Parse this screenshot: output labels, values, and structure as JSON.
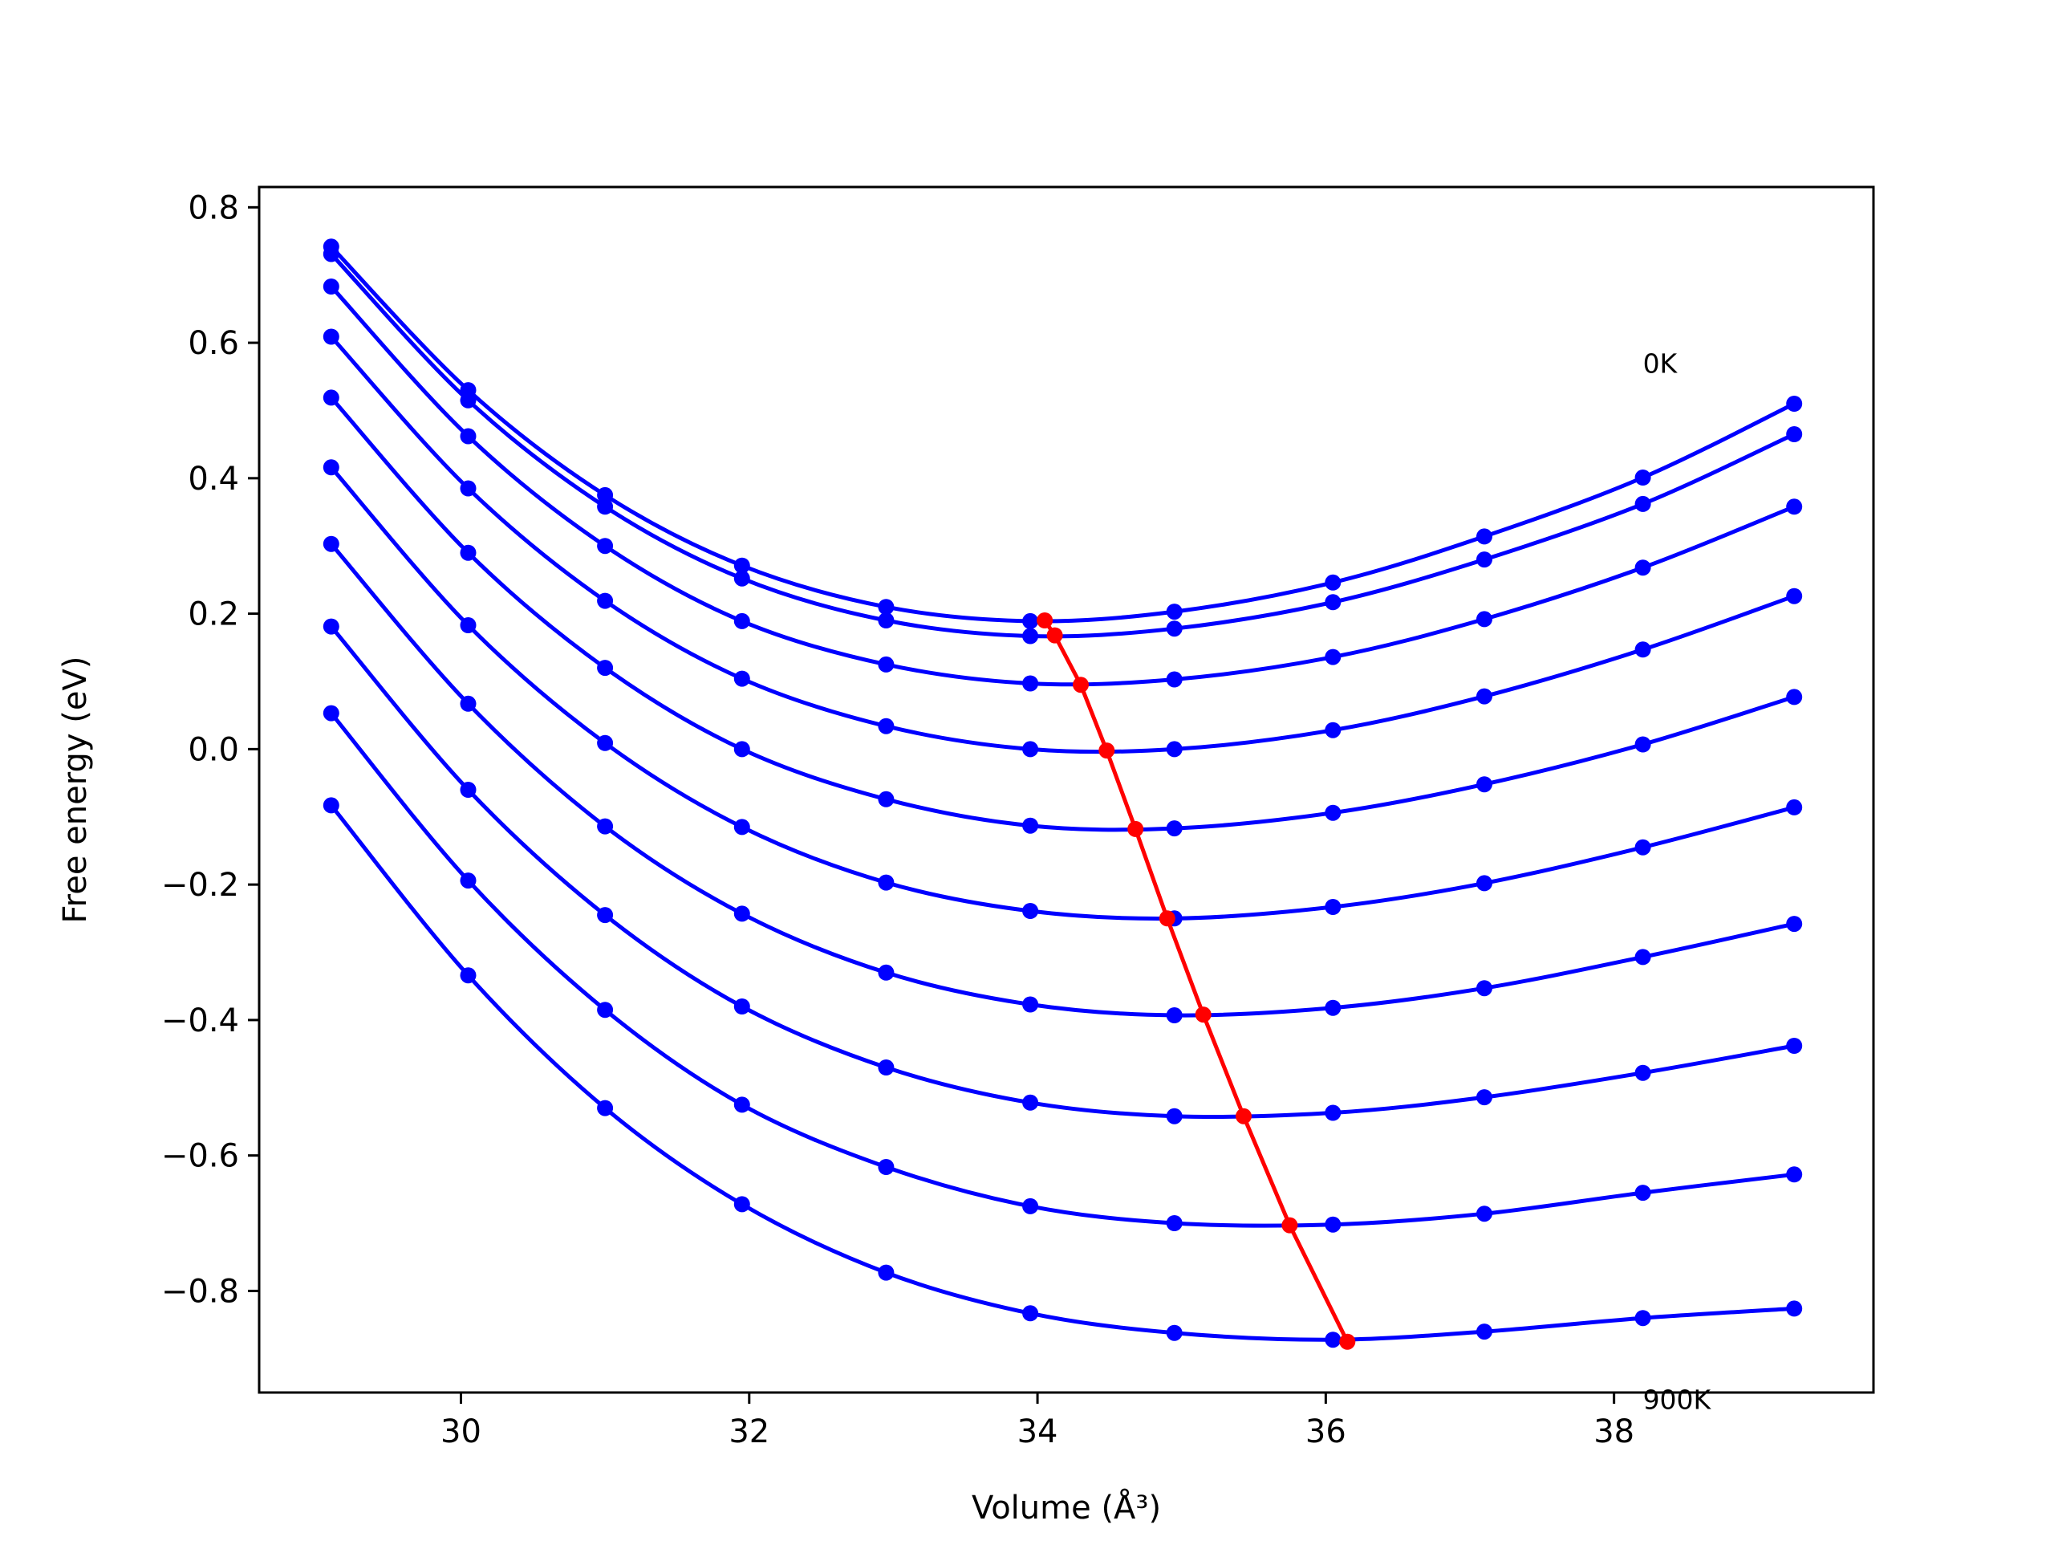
{
  "chart_data": {
    "type": "line",
    "title": "",
    "xlabel": "Volume (Å³)",
    "ylabel": "Free energy (eV)",
    "xlim": [
      28.6,
      39.8
    ],
    "ylim": [
      -0.95,
      0.83
    ],
    "xticks": [
      {
        "value": 30,
        "label": "30"
      },
      {
        "value": 32,
        "label": "32"
      },
      {
        "value": 34,
        "label": "34"
      },
      {
        "value": 36,
        "label": "36"
      },
      {
        "value": 38,
        "label": "38"
      }
    ],
    "yticks": [
      {
        "value": 0.8,
        "label": "0.8"
      },
      {
        "value": 0.6,
        "label": "0.6"
      },
      {
        "value": 0.4,
        "label": "0.4"
      },
      {
        "value": 0.2,
        "label": "0.2"
      },
      {
        "value": 0.0,
        "label": "0.0"
      },
      {
        "value": -0.2,
        "label": "−0.2"
      },
      {
        "value": -0.4,
        "label": "−0.4"
      },
      {
        "value": -0.6,
        "label": "−0.6"
      },
      {
        "value": -0.8,
        "label": "−0.8"
      }
    ],
    "grid": false,
    "legend": "none",
    "colors": {
      "series": "#0000ff",
      "minima": "#ff0000",
      "axes": "#000000"
    },
    "annotations": [
      {
        "text": "0K",
        "x": 38.2,
        "y": 0.57
      },
      {
        "text": "900K",
        "x": 38.2,
        "y": -0.96
      }
    ],
    "x": [
      29.1,
      30.05,
      31.0,
      31.95,
      32.95,
      33.95,
      34.95,
      36.05,
      37.1,
      38.2,
      39.25
    ],
    "series": [
      {
        "values": [
          0.742,
          0.53,
          0.375,
          0.271,
          0.21,
          0.189,
          0.203,
          0.246,
          0.314,
          0.401,
          0.51
        ]
      },
      {
        "values": [
          0.731,
          0.515,
          0.358,
          0.252,
          0.19,
          0.167,
          0.178,
          0.217,
          0.28,
          0.362,
          0.465
        ]
      },
      {
        "values": [
          0.683,
          0.462,
          0.3,
          0.189,
          0.125,
          0.097,
          0.103,
          0.136,
          0.192,
          0.268,
          0.358
        ]
      },
      {
        "values": [
          0.609,
          0.385,
          0.219,
          0.104,
          0.034,
          0.0,
          0.0,
          0.028,
          0.078,
          0.147,
          0.226
        ]
      },
      {
        "values": [
          0.519,
          0.29,
          0.12,
          0.0,
          -0.074,
          -0.113,
          -0.117,
          -0.094,
          -0.052,
          0.007,
          0.077
        ]
      },
      {
        "values": [
          0.416,
          0.183,
          0.009,
          -0.115,
          -0.197,
          -0.239,
          -0.25,
          -0.233,
          -0.198,
          -0.145,
          -0.086
        ]
      },
      {
        "values": [
          0.303,
          0.067,
          -0.114,
          -0.243,
          -0.33,
          -0.377,
          -0.393,
          -0.382,
          -0.353,
          -0.307,
          -0.258
        ]
      },
      {
        "values": [
          0.181,
          -0.06,
          -0.245,
          -0.38,
          -0.47,
          -0.522,
          -0.542,
          -0.537,
          -0.514,
          -0.478,
          -0.438
        ]
      },
      {
        "values": [
          0.053,
          -0.194,
          -0.385,
          -0.525,
          -0.617,
          -0.675,
          -0.7,
          -0.702,
          -0.686,
          -0.655,
          -0.628
        ]
      },
      {
        "values": [
          -0.083,
          -0.334,
          -0.53,
          -0.672,
          -0.773,
          -0.833,
          -0.862,
          -0.872,
          -0.86,
          -0.84,
          -0.826
        ]
      }
    ],
    "minima": {
      "x": [
        34.05,
        34.12,
        34.3,
        34.48,
        34.68,
        34.9,
        35.15,
        35.43,
        35.75,
        36.15
      ],
      "y": [
        0.19,
        0.168,
        0.095,
        -0.002,
        -0.118,
        -0.25,
        -0.392,
        -0.542,
        -0.703,
        -0.875
      ]
    }
  }
}
